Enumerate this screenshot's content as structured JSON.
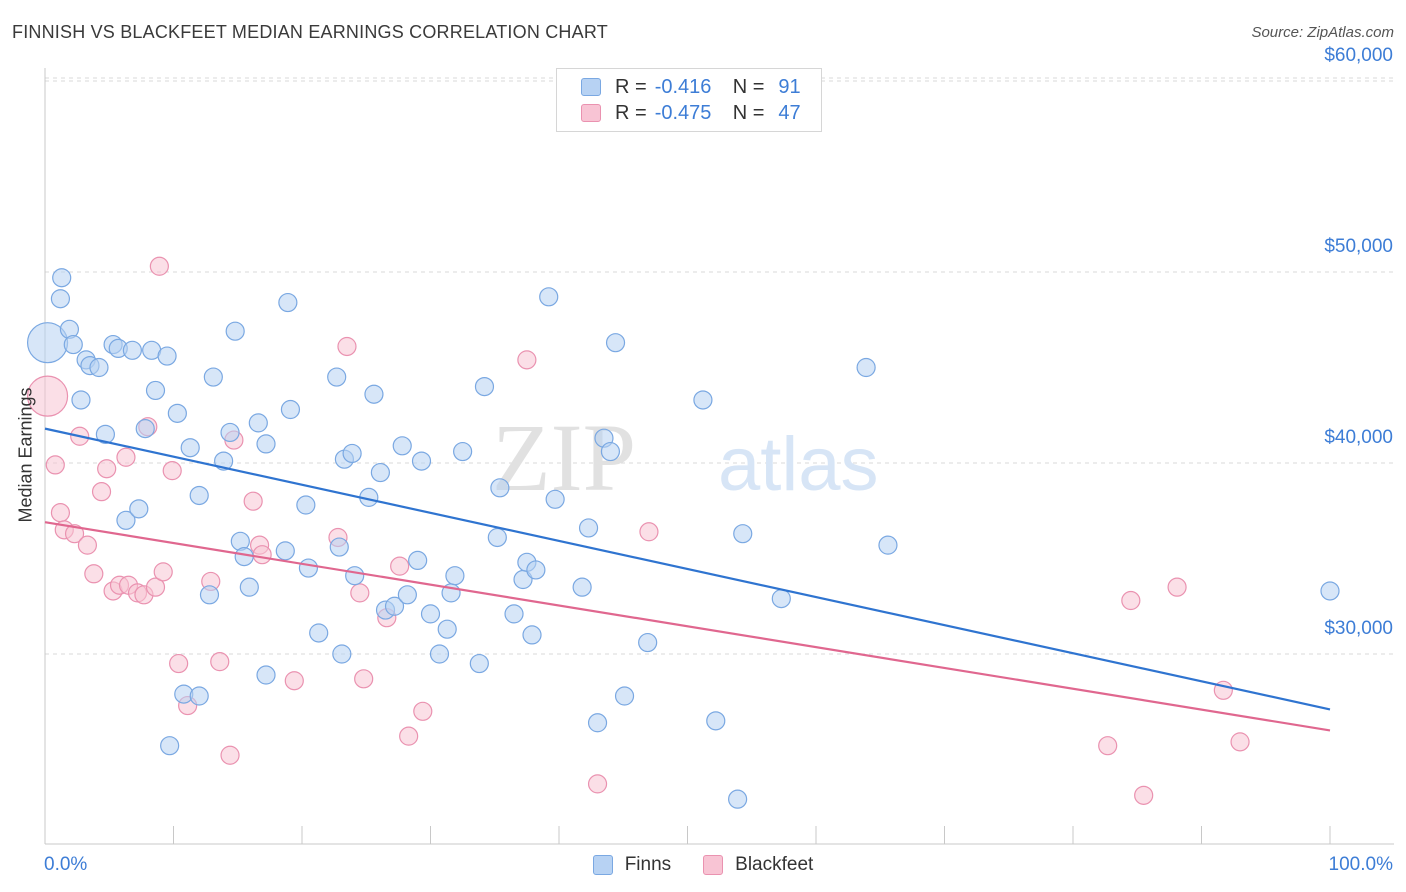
{
  "title": "FINNISH VS BLACKFEET MEDIAN EARNINGS CORRELATION CHART",
  "source": "Source: ZipAtlas.com",
  "watermark": {
    "zip": "ZIP",
    "atlas": "atlas"
  },
  "legend": {
    "r_label": "R =",
    "n_label": "N =",
    "finns": {
      "r": "-0.416",
      "n": "91"
    },
    "blackfeet": {
      "r": "-0.475",
      "n": "47"
    }
  },
  "colors": {
    "finns_fill": "#b7d2f3",
    "finns_stroke": "#7aa8e2",
    "finns_line": "#2f74d0",
    "blackfeet_fill": "#f8c4d4",
    "blackfeet_stroke": "#ea92b0",
    "blackfeet_line": "#e0678f",
    "axis_text": "#3d7dd6",
    "grid": "#d9d9d9"
  },
  "chart_data": {
    "type": "scatter",
    "title": "FINNISH VS BLACKFEET MEDIAN EARNINGS CORRELATION CHART",
    "xlabel": "",
    "ylabel": "Median Earnings",
    "xlim": [
      0,
      100
    ],
    "ylim": [
      20000,
      62000
    ],
    "x_tick_labels": [
      "0.0%",
      "100.0%"
    ],
    "y_ticks": [
      30000,
      40000,
      50000,
      60000
    ],
    "y_tick_labels": [
      "$30,000",
      "$40,000",
      "$50,000",
      "$60,000"
    ],
    "grid": true,
    "legend": "top-center",
    "series": [
      {
        "name": "Finns",
        "trend": {
          "x": [
            0,
            100
          ],
          "y": [
            41800,
            27100
          ]
        },
        "points": [
          [
            0.2,
            46300,
            "big"
          ],
          [
            1.2,
            48600
          ],
          [
            1.3,
            49700
          ],
          [
            1.9,
            47000
          ],
          [
            2.2,
            46200
          ],
          [
            2.8,
            43300
          ],
          [
            3.2,
            45400
          ],
          [
            3.5,
            45100
          ],
          [
            4.2,
            45000
          ],
          [
            4.7,
            41500
          ],
          [
            5.3,
            46200
          ],
          [
            5.7,
            46000
          ],
          [
            6.3,
            37000
          ],
          [
            6.8,
            45900
          ],
          [
            7.3,
            37600
          ],
          [
            7.8,
            41800
          ],
          [
            8.3,
            45900
          ],
          [
            8.6,
            43800
          ],
          [
            9.5,
            45600
          ],
          [
            9.7,
            25200
          ],
          [
            10.3,
            42600
          ],
          [
            10.8,
            27900
          ],
          [
            11.3,
            40800
          ],
          [
            12.0,
            27800
          ],
          [
            12.0,
            38300
          ],
          [
            12.8,
            33100
          ],
          [
            13.1,
            44500
          ],
          [
            13.9,
            40100
          ],
          [
            14.4,
            41600
          ],
          [
            14.8,
            46900
          ],
          [
            15.2,
            35900
          ],
          [
            15.5,
            35100
          ],
          [
            15.9,
            33500
          ],
          [
            16.6,
            42100
          ],
          [
            17.2,
            28900
          ],
          [
            17.2,
            41000
          ],
          [
            18.7,
            35400
          ],
          [
            18.9,
            48400
          ],
          [
            19.1,
            42800
          ],
          [
            20.3,
            37800
          ],
          [
            20.5,
            34500
          ],
          [
            21.3,
            31100
          ],
          [
            22.7,
            44500
          ],
          [
            22.9,
            35600
          ],
          [
            23.1,
            30000
          ],
          [
            23.3,
            40200
          ],
          [
            23.9,
            40500
          ],
          [
            24.1,
            34100
          ],
          [
            25.2,
            38200
          ],
          [
            25.6,
            43600
          ],
          [
            26.1,
            39500
          ],
          [
            26.5,
            32300
          ],
          [
            27.2,
            32500
          ],
          [
            27.8,
            40900
          ],
          [
            28.2,
            33100
          ],
          [
            29.0,
            34900
          ],
          [
            29.3,
            40100
          ],
          [
            30.0,
            32100
          ],
          [
            30.7,
            30000
          ],
          [
            31.3,
            31300
          ],
          [
            31.6,
            33200
          ],
          [
            31.9,
            34100
          ],
          [
            32.5,
            40600
          ],
          [
            33.8,
            29500
          ],
          [
            34.2,
            44000
          ],
          [
            35.2,
            36100
          ],
          [
            35.4,
            38700
          ],
          [
            36.5,
            32100
          ],
          [
            37.2,
            33900
          ],
          [
            37.5,
            34800
          ],
          [
            38.2,
            34400
          ],
          [
            37.9,
            31000
          ],
          [
            39.2,
            48700
          ],
          [
            39.7,
            38100
          ],
          [
            41.8,
            33500
          ],
          [
            42.3,
            36600
          ],
          [
            43.0,
            26400
          ],
          [
            43.5,
            41300
          ],
          [
            44.0,
            40600
          ],
          [
            44.4,
            46300
          ],
          [
            45.1,
            27800
          ],
          [
            46.9,
            30600
          ],
          [
            51.2,
            43300
          ],
          [
            52.2,
            26500
          ],
          [
            53.9,
            22400
          ],
          [
            54.3,
            36300
          ],
          [
            57.3,
            32900
          ],
          [
            63.9,
            45000
          ],
          [
            65.6,
            35700
          ],
          [
            100.0,
            33300
          ]
        ]
      },
      {
        "name": "Blackfeet",
        "trend": {
          "x": [
            0,
            100
          ],
          "y": [
            36900,
            26000
          ]
        },
        "points": [
          [
            0.2,
            43500,
            "big"
          ],
          [
            0.8,
            39900
          ],
          [
            1.2,
            37400
          ],
          [
            1.5,
            36500
          ],
          [
            2.3,
            36300
          ],
          [
            2.7,
            41400
          ],
          [
            3.3,
            35700
          ],
          [
            3.8,
            34200
          ],
          [
            4.4,
            38500
          ],
          [
            4.8,
            39700
          ],
          [
            5.3,
            33300
          ],
          [
            5.8,
            33600
          ],
          [
            6.3,
            40300
          ],
          [
            6.5,
            33600
          ],
          [
            7.2,
            33200
          ],
          [
            7.7,
            33100
          ],
          [
            8.0,
            41900
          ],
          [
            8.6,
            33500
          ],
          [
            8.9,
            50300
          ],
          [
            9.2,
            34300
          ],
          [
            9.9,
            39600
          ],
          [
            10.4,
            29500
          ],
          [
            11.1,
            27300
          ],
          [
            12.9,
            33800
          ],
          [
            13.6,
            29600
          ],
          [
            14.4,
            24700
          ],
          [
            14.7,
            41200
          ],
          [
            16.2,
            38000
          ],
          [
            16.7,
            35700
          ],
          [
            16.9,
            35200
          ],
          [
            19.4,
            28600
          ],
          [
            22.8,
            36100
          ],
          [
            23.5,
            46100
          ],
          [
            24.5,
            33200
          ],
          [
            24.8,
            28700
          ],
          [
            26.6,
            31900
          ],
          [
            27.6,
            34600
          ],
          [
            28.3,
            25700
          ],
          [
            29.4,
            27000
          ],
          [
            37.5,
            45400
          ],
          [
            43.0,
            23200
          ],
          [
            47.0,
            36400
          ],
          [
            82.7,
            25200
          ],
          [
            84.5,
            32800
          ],
          [
            85.5,
            22600
          ],
          [
            88.1,
            33500
          ],
          [
            91.7,
            28100
          ],
          [
            93.0,
            25400
          ]
        ]
      }
    ]
  }
}
